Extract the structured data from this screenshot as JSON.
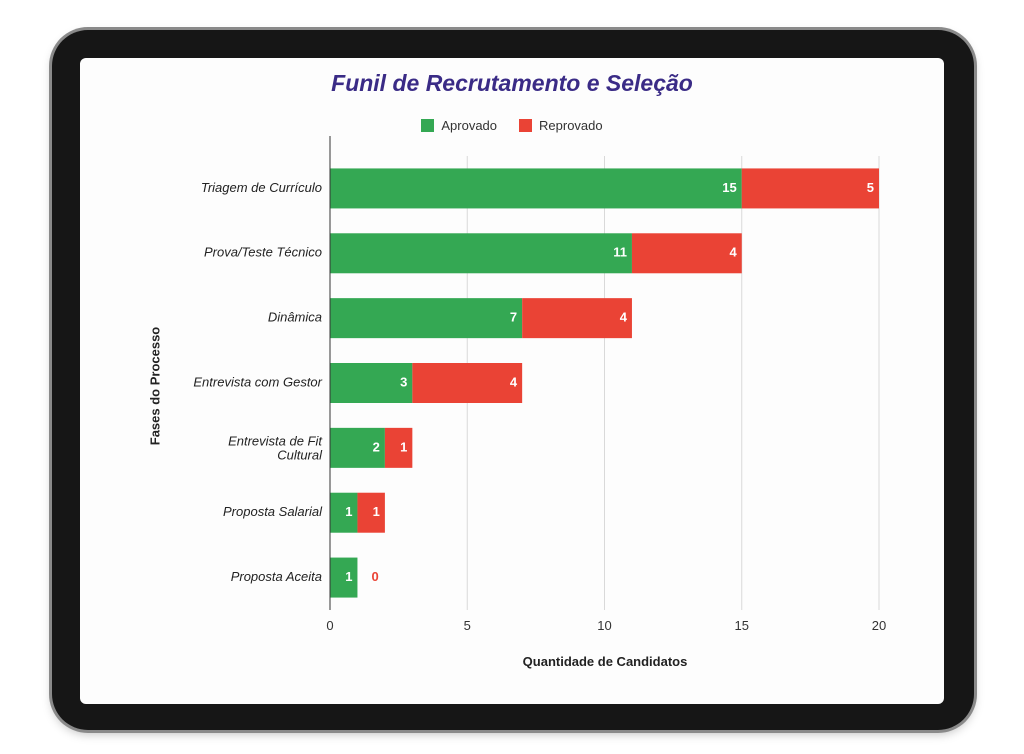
{
  "colors": {
    "approved": "#34a853",
    "rejected": "#ea4335",
    "title": "#3a2b86",
    "grid": "#d9d9d9"
  },
  "chart_data": {
    "type": "bar",
    "orientation": "horizontal",
    "stacked": true,
    "title": "Funil de Recrutamento e Seleção",
    "xlabel": "Quantidade de Candidatos",
    "ylabel": "Fases do Processo",
    "categories": [
      "Triagem de Currículo",
      "Prova/Teste Técnico",
      "Dinâmica",
      "Entrevista com Gestor",
      "Entrevista de Fit Cultural",
      "Proposta Salarial",
      "Proposta Aceita"
    ],
    "series": [
      {
        "name": "Aprovado",
        "color": "#34a853",
        "values": [
          15,
          11,
          7,
          3,
          2,
          1,
          1
        ]
      },
      {
        "name": "Reprovado",
        "color": "#ea4335",
        "values": [
          5,
          4,
          4,
          4,
          1,
          1,
          0
        ]
      }
    ],
    "xlim": [
      0,
      20
    ],
    "xticks": [
      "0",
      "5",
      "10",
      "15",
      "20"
    ],
    "grid": true,
    "legend_position": "top"
  }
}
